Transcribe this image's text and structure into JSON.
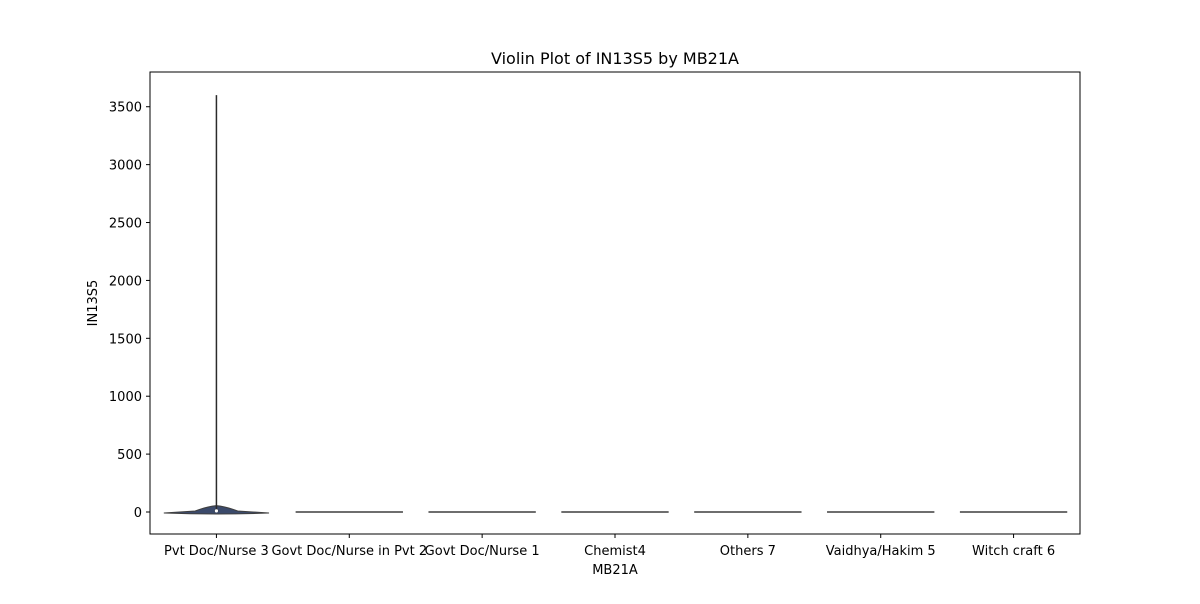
{
  "chart_data": {
    "type": "violin",
    "title": "Violin Plot of IN13S5 by MB21A",
    "xlabel": "MB21A",
    "ylabel": "IN13S5",
    "categories": [
      "Pvt Doc/Nurse 3",
      "Govt Doc/Nurse in Pvt 2",
      "Govt Doc/Nurse 1",
      "Chemist4",
      "Others 7",
      "Vaidhya/Hakim 5",
      "Witch craft 6"
    ],
    "ylim": [
      -190,
      3800
    ],
    "yticks": [
      0,
      500,
      1000,
      1500,
      2000,
      2500,
      3000,
      3500
    ],
    "series": [
      {
        "category": "Pvt Doc/Nurse 3",
        "min": 0,
        "max": 3600,
        "median": 10,
        "q1": 0,
        "q3": 20
      },
      {
        "category": "Govt Doc/Nurse in Pvt 2",
        "min": 0,
        "max": 0,
        "median": 0,
        "q1": 0,
        "q3": 0
      },
      {
        "category": "Govt Doc/Nurse 1",
        "min": 0,
        "max": 0,
        "median": 0,
        "q1": 0,
        "q3": 0
      },
      {
        "category": "Chemist4",
        "min": 0,
        "max": 0,
        "median": 0,
        "q1": 0,
        "q3": 0
      },
      {
        "category": "Others 7",
        "min": 0,
        "max": 0,
        "median": 0,
        "q1": 0,
        "q3": 0
      },
      {
        "category": "Vaidhya/Hakim 5",
        "min": 0,
        "max": 0,
        "median": 0,
        "q1": 0,
        "q3": 0
      },
      {
        "category": "Witch craft 6",
        "min": 0,
        "max": 0,
        "median": 0,
        "q1": 0,
        "q3": 0
      }
    ],
    "grid": false,
    "colors": {
      "violin_fill": "#3b4a6b",
      "line": "#3f3f3f"
    }
  }
}
